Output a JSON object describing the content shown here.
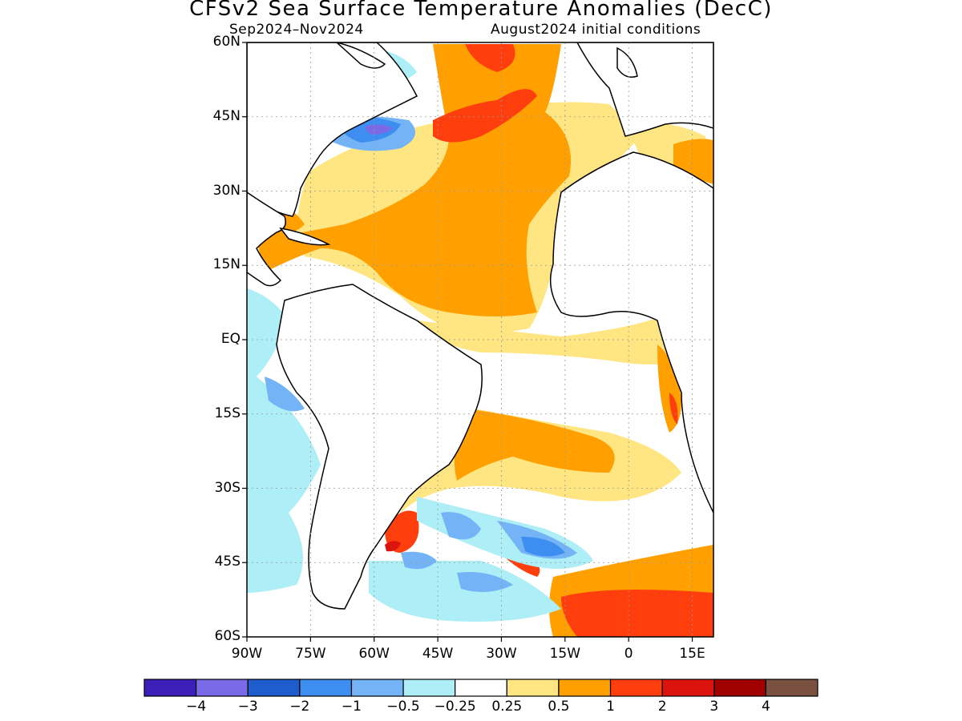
{
  "header": {
    "title": "CFSv2 Sea Surface Temperature Anomalies (DecC)",
    "period": "Sep2024–Nov2024",
    "initial_conditions": "August2024 initial conditions"
  },
  "map": {
    "region": "Atlantic Ocean",
    "lat_range": [
      -60,
      60
    ],
    "lon_range": [
      -90,
      20
    ],
    "grid": true,
    "lat_labels": [
      "60N",
      "45N",
      "30N",
      "15N",
      "EQ",
      "15S",
      "30S",
      "45S",
      "60S"
    ],
    "lon_labels": [
      "90W",
      "75W",
      "60W",
      "45W",
      "30W",
      "15W",
      "0",
      "15E"
    ]
  },
  "colorbar": {
    "colors": [
      "#3b1fb8",
      "#7b6ae8",
      "#1f5ccc",
      "#3d8ef0",
      "#74b3f5",
      "#aeeef7",
      "#ffffff",
      "#ffe682",
      "#ffa000",
      "#ff3e0e",
      "#dc140e",
      "#a00000",
      "#7a5040"
    ],
    "labels": [
      "−4",
      "−3",
      "−2",
      "−1",
      "−0.5",
      "−0.25",
      "0.25",
      "0.5",
      "1",
      "2",
      "3",
      "4"
    ]
  },
  "anomaly_regions": [
    {
      "area": "Central North Atlantic band",
      "level": "0.5 to 1"
    },
    {
      "area": "Off Newfoundland / Gulf Stream",
      "level": "1 to 2"
    },
    {
      "area": "Off US East Coast near 40N",
      "level": "-2 to -1"
    },
    {
      "area": "Tropical North Atlantic",
      "level": "0.5 to 1"
    },
    {
      "area": "Subtropical South Atlantic",
      "level": "0.5 to 1"
    },
    {
      "area": "Brazil-Malvinas confluence",
      "level": "2 to 3"
    },
    {
      "area": "Southern Atlantic near 40-45S",
      "level": "-2 to -0.5"
    },
    {
      "area": "Southern Ocean 50-60S",
      "level": "1 to 2"
    },
    {
      "area": "Angola-Benguela coast",
      "level": "1 to 2"
    },
    {
      "area": "Eastern tropical Pacific",
      "level": "-0.5 to -0.25"
    }
  ]
}
